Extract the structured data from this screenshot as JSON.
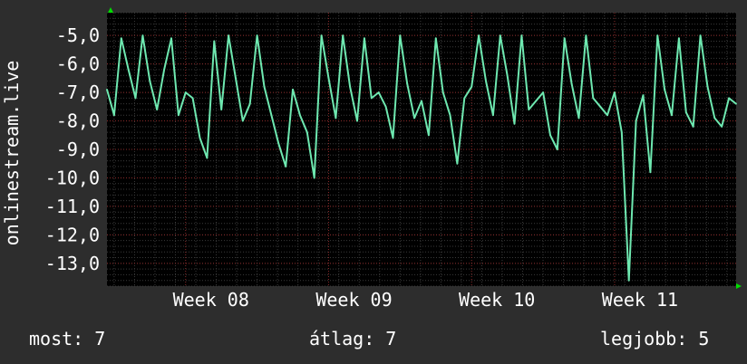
{
  "chart_data": {
    "type": "line",
    "ylabel": "onlinestream.live",
    "ylim": [
      -13.8,
      -4.2
    ],
    "y_ticks": [
      -5,
      -6,
      -7,
      -8,
      -9,
      -10,
      -11,
      -12,
      -13
    ],
    "y_tick_labels": [
      "-5,0",
      "-6,0",
      "-7,0",
      "-8,0",
      "-9,0",
      "-10,0",
      "-11,0",
      "-12,0",
      "-13,0"
    ],
    "xlim": [
      7.45,
      11.85
    ],
    "x_ticks": [
      8,
      9,
      10,
      11
    ],
    "x_tick_labels": [
      "Week 08",
      "Week 09",
      "Week 10",
      "Week 11"
    ],
    "grid": true,
    "series": [
      {
        "color": "#6ee8b0",
        "x": [
          7.45,
          7.5,
          7.55,
          7.6,
          7.65,
          7.7,
          7.75,
          7.8,
          7.85,
          7.9,
          7.95,
          8.0,
          8.05,
          8.1,
          8.15,
          8.2,
          8.25,
          8.3,
          8.35,
          8.4,
          8.45,
          8.5,
          8.55,
          8.6,
          8.65,
          8.7,
          8.75,
          8.8,
          8.85,
          8.9,
          8.95,
          9.0,
          9.05,
          9.1,
          9.15,
          9.2,
          9.25,
          9.3,
          9.35,
          9.4,
          9.45,
          9.5,
          9.55,
          9.6,
          9.65,
          9.7,
          9.75,
          9.8,
          9.85,
          9.9,
          9.95,
          10.0,
          10.05,
          10.1,
          10.15,
          10.2,
          10.25,
          10.3,
          10.35,
          10.4,
          10.45,
          10.5,
          10.55,
          10.6,
          10.65,
          10.7,
          10.75,
          10.8,
          10.85,
          10.9,
          10.95,
          11.0,
          11.05,
          11.1,
          11.15,
          11.2,
          11.25,
          11.3,
          11.35,
          11.4,
          11.45,
          11.5,
          11.55,
          11.6,
          11.65,
          11.7,
          11.75,
          11.8,
          11.85
        ],
        "values": [
          -6.9,
          -7.8,
          -5.1,
          -6.2,
          -7.2,
          -5.0,
          -6.6,
          -7.6,
          -6.2,
          -5.1,
          -7.8,
          -7.0,
          -7.2,
          -8.6,
          -9.3,
          -5.2,
          -7.6,
          -5.0,
          -6.5,
          -8.0,
          -7.4,
          -5.0,
          -6.8,
          -7.8,
          -8.8,
          -9.6,
          -6.9,
          -7.8,
          -8.4,
          -10.0,
          -5.0,
          -6.5,
          -7.9,
          -5.0,
          -6.8,
          -8.0,
          -5.1,
          -7.2,
          -7.0,
          -7.5,
          -8.6,
          -5.0,
          -6.7,
          -7.9,
          -7.3,
          -8.5,
          -5.1,
          -7.0,
          -7.8,
          -9.5,
          -7.2,
          -6.8,
          -5.0,
          -6.6,
          -7.8,
          -5.0,
          -6.4,
          -8.1,
          -5.0,
          -7.6,
          -7.3,
          -7.0,
          -8.5,
          -9.0,
          -5.1,
          -6.7,
          -7.9,
          -5.0,
          -7.2,
          -7.5,
          -7.8,
          -7.0,
          -8.4,
          -13.6,
          -8.0,
          -7.1,
          -9.8,
          -5.0,
          -6.9,
          -7.8,
          -5.1,
          -7.7,
          -8.2,
          -5.0,
          -6.8,
          -7.9,
          -8.2,
          -7.2,
          -7.4
        ]
      }
    ]
  },
  "stats": {
    "current": "most: 7",
    "average": "átlag: 7",
    "best": "legjobb: 5"
  },
  "colors": {
    "background": "#2d2d2d",
    "plot_background": "#000000",
    "grid_major": "#8a2a2a",
    "grid_minor": "#3a3a3a",
    "line": "#6ee8b0",
    "axis_arrow": "#00dd00",
    "text": "#ffffff"
  }
}
